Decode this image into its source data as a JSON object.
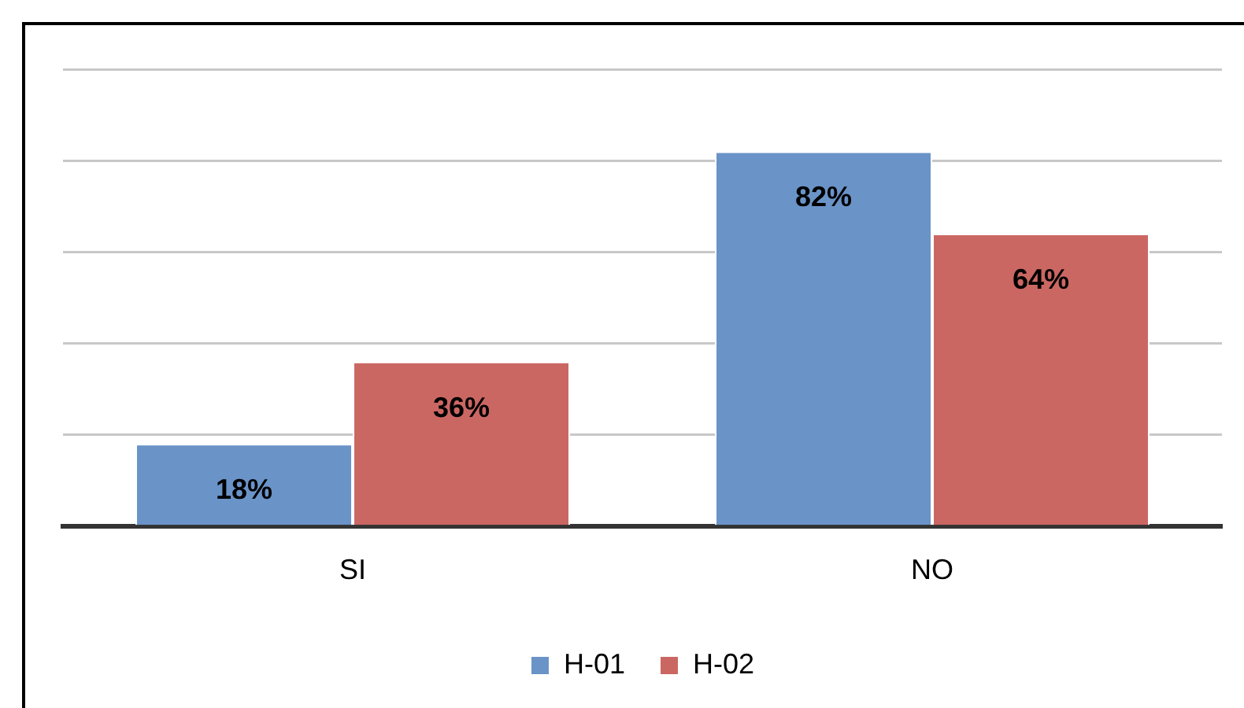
{
  "chart_data": {
    "type": "bar",
    "categories": [
      "SI",
      "NO"
    ],
    "series": [
      {
        "name": "H-01",
        "color": "#6a93c8",
        "values": [
          18,
          82
        ],
        "value_labels": [
          "18%",
          "82%"
        ]
      },
      {
        "name": "H-02",
        "color": "#cb6763",
        "values": [
          36,
          64
        ],
        "value_labels": [
          "36%",
          "64%"
        ]
      }
    ],
    "tick_labels": "x",
    "grid": "y",
    "legend": "bottom"
  }
}
